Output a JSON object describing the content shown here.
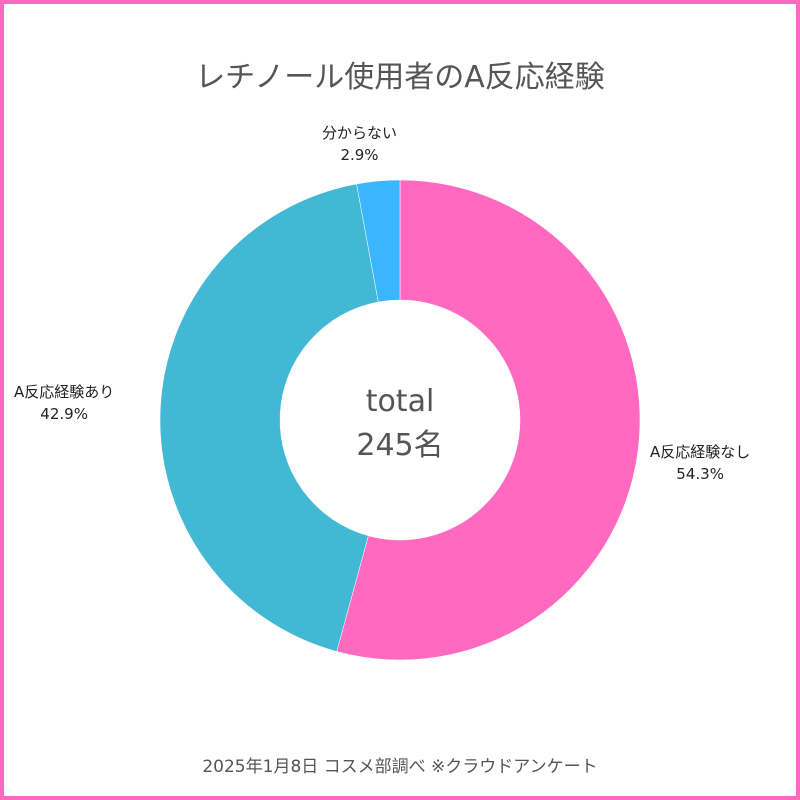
{
  "chart_data": {
    "type": "pie",
    "title": "レチノール使用者のA反応経験",
    "donut": true,
    "center_text": [
      "total",
      "245名"
    ],
    "slices": [
      {
        "label": "A反応経験なし",
        "value": 54.3,
        "value_label": "54.3%",
        "color": "#ff69c0"
      },
      {
        "label": "A反応経験あり",
        "value": 42.9,
        "value_label": "42.9%",
        "color": "#42b8d5"
      },
      {
        "label": "分からない",
        "value": 2.9,
        "value_label": "2.9%",
        "color": "#3bb5ff"
      }
    ],
    "start": "top",
    "direction": "clockwise"
  },
  "footer": "2025年1月8日 コスメ部調べ ※クラウドアンケート"
}
